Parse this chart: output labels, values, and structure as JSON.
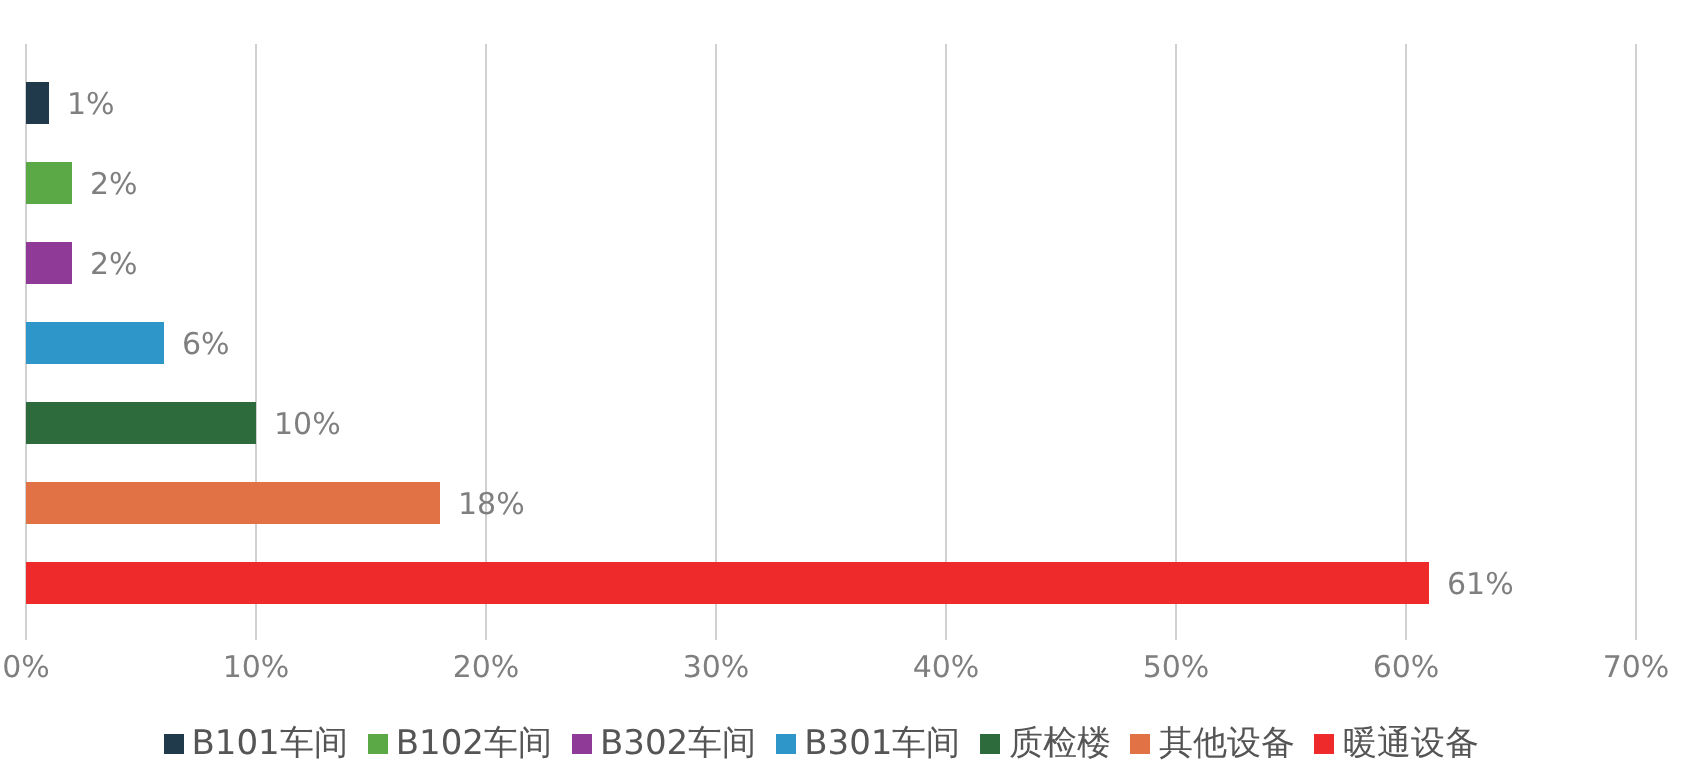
{
  "chart_data": {
    "type": "bar",
    "orientation": "horizontal",
    "categories": [
      null
    ],
    "series": [
      {
        "name": "B101车间",
        "color": "#203a4c",
        "values": [
          1
        ],
        "value_labels": [
          "1%"
        ]
      },
      {
        "name": "B102车间",
        "color": "#5aa846",
        "values": [
          2
        ],
        "value_labels": [
          "2%"
        ]
      },
      {
        "name": "B302车间",
        "color": "#8e3a96",
        "values": [
          2
        ],
        "value_labels": [
          "2%"
        ]
      },
      {
        "name": "B301车间",
        "color": "#2e96c8",
        "values": [
          6
        ],
        "value_labels": [
          "6%"
        ]
      },
      {
        "name": "质检楼",
        "color": "#2e6b3c",
        "values": [
          10
        ],
        "value_labels": [
          "10%"
        ]
      },
      {
        "name": "其他设备",
        "color": "#e07245",
        "values": [
          18
        ],
        "value_labels": [
          "18%"
        ]
      },
      {
        "name": "暖通设备",
        "color": "#ee2a2a",
        "values": [
          61
        ],
        "value_labels": [
          "61%"
        ]
      }
    ],
    "xlim": [
      0,
      70
    ],
    "xticks": [
      {
        "value": 0,
        "label": "0%"
      },
      {
        "value": 10,
        "label": "10%"
      },
      {
        "value": 20,
        "label": "20%"
      },
      {
        "value": 30,
        "label": "30%"
      },
      {
        "value": 40,
        "label": "40%"
      },
      {
        "value": 50,
        "label": "50%"
      },
      {
        "value": 60,
        "label": "60%"
      },
      {
        "value": 70,
        "label": "70%"
      }
    ],
    "grid": "x",
    "legend": "bottom"
  }
}
